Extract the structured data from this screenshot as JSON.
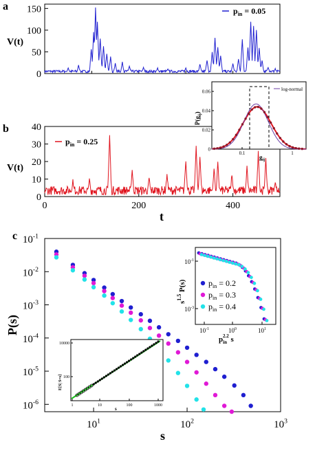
{
  "panels": {
    "a": {
      "letter": "a"
    },
    "b": {
      "letter": "b"
    },
    "c": {
      "letter": "c"
    }
  },
  "colors": {
    "blue": "#1f1fd0",
    "red": "#e0141e",
    "magenta": "#e019d6",
    "cyan": "#22e2e8",
    "green": "#1cc21c",
    "inset_line": "#6b3fa6"
  },
  "chart_data": [
    {
      "id": "a",
      "type": "line",
      "ylabel": "V(t)",
      "xlim": [
        0,
        500
      ],
      "ylim": [
        0,
        160
      ],
      "yticks": [
        "0",
        "50",
        "100",
        "150"
      ],
      "legend": {
        "p": "p",
        "sub": "in",
        "rest": " = 0.05"
      },
      "color": "#1f1fd0",
      "peaks": [
        {
          "t": 108,
          "v": 152
        },
        {
          "t": 112,
          "v": 118
        },
        {
          "t": 104,
          "v": 95
        },
        {
          "t": 118,
          "v": 80
        },
        {
          "t": 125,
          "v": 62
        },
        {
          "t": 99,
          "v": 55
        },
        {
          "t": 132,
          "v": 45
        },
        {
          "t": 140,
          "v": 38
        },
        {
          "t": 362,
          "v": 82
        },
        {
          "t": 368,
          "v": 60
        },
        {
          "t": 356,
          "v": 48
        },
        {
          "t": 374,
          "v": 40
        },
        {
          "t": 420,
          "v": 78
        },
        {
          "t": 438,
          "v": 118
        },
        {
          "t": 444,
          "v": 108
        },
        {
          "t": 450,
          "v": 100
        },
        {
          "t": 432,
          "v": 60
        },
        {
          "t": 456,
          "v": 58
        },
        {
          "t": 412,
          "v": 32
        },
        {
          "t": 462,
          "v": 30
        },
        {
          "t": 50,
          "v": 12
        },
        {
          "t": 72,
          "v": 18
        },
        {
          "t": 150,
          "v": 22
        },
        {
          "t": 165,
          "v": 25
        },
        {
          "t": 180,
          "v": 16
        },
        {
          "t": 210,
          "v": 14
        },
        {
          "t": 240,
          "v": 12
        },
        {
          "t": 262,
          "v": 10
        },
        {
          "t": 300,
          "v": 12
        },
        {
          "t": 330,
          "v": 20
        },
        {
          "t": 345,
          "v": 30
        },
        {
          "t": 400,
          "v": 22
        },
        {
          "t": 475,
          "v": 14
        },
        {
          "t": 490,
          "v": 10
        }
      ]
    },
    {
      "id": "b",
      "type": "line",
      "xlabel": "t",
      "ylabel": "V(t)",
      "xlim": [
        0,
        500
      ],
      "ylim": [
        0,
        40
      ],
      "xticks": [
        "0",
        "200",
        "400"
      ],
      "yticks": [
        "0",
        "10",
        "20",
        "30",
        "40"
      ],
      "legend": {
        "p": "p",
        "sub": "in",
        "rest": " = 0.25"
      },
      "color": "#e0141e",
      "peaks": [
        {
          "t": 138,
          "v": 34
        },
        {
          "t": 322,
          "v": 28
        },
        {
          "t": 454,
          "v": 25
        },
        {
          "t": 300,
          "v": 20
        },
        {
          "t": 360,
          "v": 15
        },
        {
          "t": 186,
          "v": 14
        },
        {
          "t": 222,
          "v": 10
        },
        {
          "t": 368,
          "v": 18
        },
        {
          "t": 430,
          "v": 16
        },
        {
          "t": 470,
          "v": 20
        },
        {
          "t": 330,
          "v": 22
        },
        {
          "t": 60,
          "v": 8
        },
        {
          "t": 95,
          "v": 9
        },
        {
          "t": 260,
          "v": 12
        },
        {
          "t": 398,
          "v": 12
        },
        {
          "t": 490,
          "v": 8
        }
      ],
      "inset": {
        "xlabel": "g",
        "xlabel_sub": "ij",
        "ylabel": "P(g",
        "ylabel_sub": "ij",
        "ylabel_end": ")",
        "legend": "log-normal",
        "xticks": [
          "0.1",
          "1"
        ],
        "yticks": [
          "0",
          "0.02",
          "0.04",
          "0.06"
        ],
        "ylim": [
          0,
          0.07
        ]
      }
    },
    {
      "id": "c",
      "type": "scatter",
      "xlabel": "s",
      "ylabel": "P(s)",
      "x_scale": "log",
      "y_scale": "log",
      "xlim": [
        3,
        1000
      ],
      "ylim": [
        6e-07,
        0.1
      ],
      "xticks": [
        {
          "base": "10",
          "exp": "1"
        },
        {
          "base": "10",
          "exp": "2"
        },
        {
          "base": "10",
          "exp": "3"
        }
      ],
      "yticks": [
        {
          "base": "10",
          "exp": "-1"
        },
        {
          "base": "10",
          "exp": "-2"
        },
        {
          "base": "10",
          "exp": "-3"
        },
        {
          "base": "10",
          "exp": "-4"
        },
        {
          "base": "10",
          "exp": "-5"
        },
        {
          "base": "10",
          "exp": "-6"
        }
      ],
      "series": [
        {
          "name": "p_in = 0.2",
          "color": "#1f1fd0",
          "x": [
            4,
            6,
            8,
            10,
            13,
            16,
            20,
            25,
            32,
            40,
            50,
            63,
            80,
            100,
            126,
            160,
            200,
            250,
            320,
            400,
            480
          ],
          "y": [
            0.04,
            0.016,
            0.009,
            0.0056,
            0.0033,
            0.0021,
            0.0013,
            0.00083,
            0.00052,
            0.00033,
            0.00021,
            0.00013,
            8.2e-05,
            5.1e-05,
            3.1e-05,
            1.9e-05,
            1.15e-05,
            6.8e-06,
            3.7e-06,
            1.9e-06,
            9e-07
          ]
        },
        {
          "name": "p_in = 0.3",
          "color": "#e019d6",
          "x": [
            4,
            6,
            8,
            10,
            13,
            16,
            20,
            25,
            32,
            40,
            50,
            63,
            80,
            100,
            126,
            160,
            200,
            250,
            300
          ],
          "y": [
            0.033,
            0.0135,
            0.0075,
            0.0045,
            0.0026,
            0.0016,
            0.00095,
            0.00058,
            0.00034,
            0.0002,
            0.000118,
            6.8e-05,
            3.7e-05,
            1.9e-05,
            9.2e-06,
            4.2e-06,
            1.9e-06,
            9e-07,
            6e-07
          ]
        },
        {
          "name": "p_in = 0.4",
          "color": "#22e2e8",
          "x": [
            4,
            6,
            8,
            10,
            13,
            16,
            20,
            25,
            32,
            40,
            50,
            63,
            80,
            100,
            126,
            150
          ],
          "y": [
            0.027,
            0.011,
            0.0058,
            0.0034,
            0.0019,
            0.00112,
            0.00063,
            0.00035,
            0.000185,
            9.5e-05,
            4.6e-05,
            2.1e-05,
            8.8e-06,
            3.6e-06,
            1.4e-06,
            7e-07
          ]
        }
      ],
      "legend": [
        {
          "p": "p",
          "sub": "in",
          "rest": " = 0.2",
          "color": "#1f1fd0"
        },
        {
          "p": "p",
          "sub": "in",
          "rest": " = 0.3",
          "color": "#e019d6"
        },
        {
          "p": "p",
          "sub": "in",
          "rest": " = 0.4",
          "color": "#22e2e8"
        }
      ],
      "inset_collapse": {
        "ylabel_base": "s",
        "ylabel_exp": "1.5",
        "ylabel_rest": " P(s)",
        "xlabel_base": "p",
        "xlabel_sub": "in",
        "xlabel_exp": "2.2",
        "xlabel_rest": " s",
        "xticks": [
          {
            "base": "10",
            "exp": "-1"
          },
          {
            "base": "10",
            "exp": "0"
          },
          {
            "base": "10",
            "exp": "1"
          }
        ],
        "yticks": [
          {
            "base": "10",
            "exp": "-1"
          },
          {
            "base": "10",
            "exp": "-3"
          }
        ]
      },
      "inset_mean": {
        "ylabel": "E[S",
        "ylabel_rest": "| S=s]",
        "xlabel": "s",
        "xticks": [
          "1",
          "10",
          "100",
          "1000"
        ],
        "yticks": [
          "100",
          "10000"
        ]
      }
    }
  ]
}
